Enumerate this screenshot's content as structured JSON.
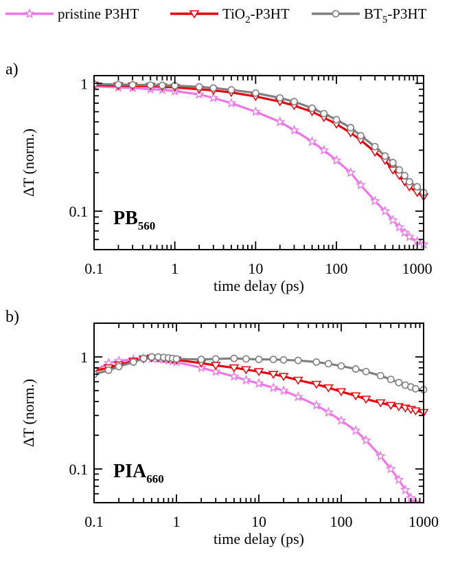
{
  "legend": [
    {
      "label": "pristine P3HT",
      "sub": "",
      "rest": "",
      "color": "#f075e8",
      "marker": "star"
    },
    {
      "label": "TiO",
      "sub": "2",
      "rest": "-P3HT",
      "color": "#e8000b",
      "marker": "triangle-down"
    },
    {
      "label": "BT",
      "sub": "5",
      "rest": "-P3HT",
      "color": "#7f7f7f",
      "marker": "circle"
    }
  ],
  "chart_data": [
    {
      "type": "line",
      "panel_label": "a)",
      "annotation": "PB",
      "annotation_sub": "560",
      "xlabel": "time delay (ps)",
      "ylabel": "ΔT (norm.)",
      "xscale": "log",
      "yscale": "log",
      "xlim": [
        0.1,
        1200
      ],
      "ylim": [
        0.05,
        1.15
      ],
      "xticks": [
        "0.1",
        "1",
        "10",
        "100",
        "1000"
      ],
      "yticks": [
        "0.1",
        "1"
      ],
      "series": [
        {
          "name": "pristine P3HT",
          "x": [
            0.1,
            0.2,
            0.3,
            0.5,
            0.7,
            1,
            2,
            3,
            5,
            10,
            20,
            30,
            50,
            70,
            100,
            150,
            200,
            300,
            400,
            500,
            600,
            700,
            800,
            1000,
            1200
          ],
          "y": [
            0.95,
            0.93,
            0.92,
            0.9,
            0.89,
            0.87,
            0.82,
            0.77,
            0.7,
            0.6,
            0.5,
            0.43,
            0.35,
            0.3,
            0.25,
            0.2,
            0.16,
            0.12,
            0.1,
            0.085,
            0.075,
            0.068,
            0.063,
            0.058,
            0.055
          ]
        },
        {
          "name": "TiO2-P3HT",
          "x": [
            0.1,
            0.2,
            0.3,
            0.5,
            0.7,
            1,
            2,
            3,
            5,
            10,
            20,
            30,
            50,
            70,
            100,
            150,
            200,
            300,
            400,
            500,
            600,
            700,
            800,
            1000,
            1200
          ],
          "y": [
            0.97,
            0.96,
            0.955,
            0.95,
            0.94,
            0.93,
            0.9,
            0.88,
            0.85,
            0.79,
            0.72,
            0.67,
            0.6,
            0.54,
            0.48,
            0.41,
            0.36,
            0.29,
            0.25,
            0.21,
            0.19,
            0.17,
            0.155,
            0.14,
            0.13
          ]
        },
        {
          "name": "BT5-P3HT",
          "x": [
            0.1,
            0.2,
            0.3,
            0.5,
            0.7,
            1,
            2,
            3,
            5,
            10,
            20,
            30,
            50,
            70,
            100,
            150,
            200,
            300,
            400,
            500,
            600,
            700,
            800,
            1000,
            1200
          ],
          "y": [
            0.99,
            0.98,
            0.975,
            0.97,
            0.965,
            0.96,
            0.94,
            0.92,
            0.89,
            0.84,
            0.77,
            0.72,
            0.64,
            0.58,
            0.52,
            0.45,
            0.39,
            0.32,
            0.27,
            0.24,
            0.21,
            0.19,
            0.17,
            0.155,
            0.14
          ]
        }
      ]
    },
    {
      "type": "line",
      "panel_label": "b)",
      "annotation": "PIA",
      "annotation_sub": "660",
      "xlabel": "time delay (ps)",
      "ylabel": "ΔT (norm.)",
      "xscale": "log",
      "yscale": "log",
      "xlim": [
        0.1,
        1000
      ],
      "ylim": [
        0.05,
        2.0
      ],
      "xticks": [
        "0.1",
        "1",
        "10",
        "100",
        "1000"
      ],
      "yticks": [
        "0.1",
        "1"
      ],
      "series": [
        {
          "name": "pristine P3HT",
          "x": [
            0.1,
            0.15,
            0.2,
            0.3,
            0.4,
            0.5,
            0.6,
            0.7,
            0.8,
            0.9,
            1,
            2,
            3,
            5,
            7,
            10,
            15,
            20,
            30,
            50,
            70,
            100,
            150,
            200,
            300,
            400,
            500,
            600,
            700,
            800
          ],
          "y": [
            0.75,
            0.88,
            0.92,
            0.95,
            0.97,
            0.97,
            0.96,
            0.95,
            0.93,
            0.92,
            0.9,
            0.8,
            0.74,
            0.67,
            0.62,
            0.58,
            0.53,
            0.5,
            0.44,
            0.37,
            0.32,
            0.27,
            0.22,
            0.18,
            0.13,
            0.1,
            0.08,
            0.065,
            0.055,
            0.05
          ]
        },
        {
          "name": "TiO2-P3HT",
          "x": [
            0.1,
            0.15,
            0.2,
            0.3,
            0.4,
            0.5,
            0.6,
            0.7,
            0.8,
            0.9,
            1,
            2,
            3,
            5,
            7,
            10,
            15,
            20,
            30,
            50,
            70,
            100,
            150,
            200,
            300,
            400,
            500,
            600,
            700,
            800,
            1000
          ],
          "y": [
            0.75,
            0.8,
            0.85,
            0.92,
            0.96,
            0.98,
            0.98,
            0.97,
            0.96,
            0.95,
            0.94,
            0.88,
            0.84,
            0.8,
            0.77,
            0.74,
            0.7,
            0.67,
            0.62,
            0.57,
            0.53,
            0.49,
            0.45,
            0.42,
            0.39,
            0.37,
            0.36,
            0.35,
            0.34,
            0.33,
            0.32
          ]
        },
        {
          "name": "BT5-P3HT",
          "x": [
            0.1,
            0.15,
            0.2,
            0.3,
            0.4,
            0.5,
            0.6,
            0.7,
            0.8,
            0.9,
            1,
            2,
            3,
            5,
            7,
            10,
            15,
            20,
            30,
            50,
            70,
            100,
            150,
            200,
            300,
            400,
            500,
            600,
            700,
            800,
            1000
          ],
          "y": [
            0.7,
            0.76,
            0.82,
            0.9,
            0.97,
            1.0,
            1.0,
            0.99,
            0.98,
            0.97,
            0.96,
            0.95,
            0.96,
            0.97,
            0.96,
            0.95,
            0.95,
            0.94,
            0.93,
            0.9,
            0.87,
            0.83,
            0.78,
            0.74,
            0.68,
            0.63,
            0.59,
            0.56,
            0.54,
            0.52,
            0.51
          ]
        }
      ]
    }
  ]
}
